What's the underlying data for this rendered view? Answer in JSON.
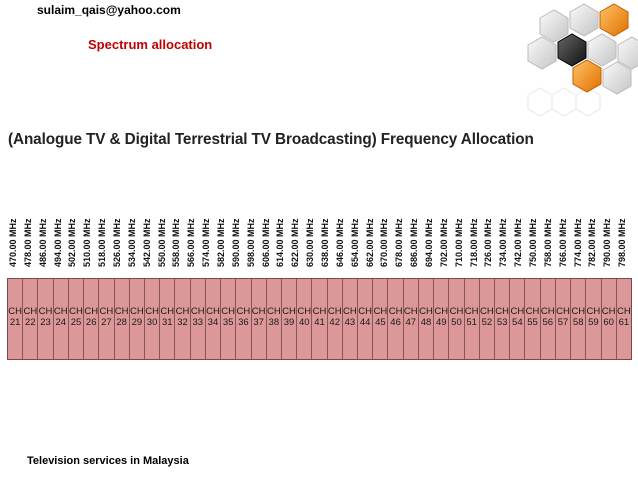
{
  "header": {
    "email": "sulaim_qais@yahoo.com",
    "section_title": "Spectrum allocation"
  },
  "diagram": {
    "title": "(Analogue TV & Digital Terrestrial TV Broadcasting) Frequency Allocation",
    "frequencies": [
      "470.00 MHz",
      "478.00 MHz",
      "486.00 MHz",
      "494.00 MHz",
      "502.00 MHz",
      "510.00 MHz",
      "518.00 MHz",
      "526.00 MHz",
      "534.00 MHz",
      "542.00 MHz",
      "550.00 MHz",
      "558.00 MHz",
      "566.00 MHz",
      "574.00 MHz",
      "582.00 MHz",
      "590.00 MHz",
      "598.00 MHz",
      "606.00 MHz",
      "614.00 MHz",
      "622.00 MHz",
      "630.00 MHz",
      "638.00 MHz",
      "646.00 MHz",
      "654.00 MHz",
      "662.00 MHz",
      "670.00 MHz",
      "678.00 MHz",
      "686.00 MHz",
      "694.00 MHz",
      "702.00 MHz",
      "710.00 MHz",
      "718.00 MHz",
      "726.00 MHz",
      "734.00 MHz",
      "742.00 MHz",
      "750.00 MHz",
      "758.00 MHz",
      "766.00 MHz",
      "774.00 MHz",
      "782.00 MHz",
      "790.00 MHz",
      "798.00 MHz"
    ],
    "channel_prefix": "CH",
    "channels": [
      "21",
      "22",
      "23",
      "24",
      "25",
      "26",
      "27",
      "28",
      "29",
      "30",
      "31",
      "32",
      "33",
      "34",
      "35",
      "36",
      "37",
      "38",
      "39",
      "40",
      "41",
      "42",
      "43",
      "44",
      "45",
      "46",
      "47",
      "48",
      "49",
      "50",
      "51",
      "52",
      "53",
      "54",
      "55",
      "56",
      "57",
      "58",
      "59",
      "60",
      "61"
    ],
    "channel_color": "#dc9898"
  },
  "footer": {
    "caption": "Television services in Malaysia"
  },
  "logo": {
    "icon": "hexagon-cluster-icon",
    "colors": [
      "#f28c1e",
      "#3a3a3a",
      "#d9d9d9"
    ]
  }
}
